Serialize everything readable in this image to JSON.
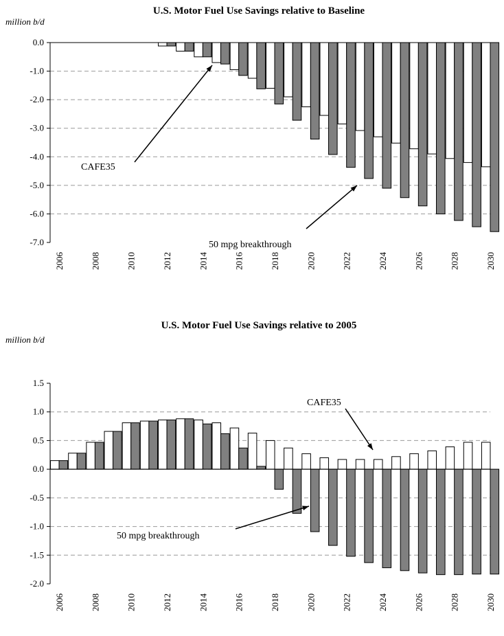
{
  "charts": [
    {
      "id": "baseline",
      "title": "U.S. Motor Fuel Use Savings relative to Baseline",
      "unit_label": "million b/d",
      "annotations": {
        "cafe": "CAFE35",
        "breakthrough": "50 mpg breakthrough"
      }
    },
    {
      "id": "y2005",
      "title": "U.S. Motor Fuel Use Savings relative to 2005",
      "unit_label": "million b/d",
      "annotations": {
        "cafe": "CAFE35",
        "breakthrough": "50 mpg breakthrough"
      }
    }
  ],
  "chart_data": [
    {
      "type": "bar",
      "title": "U.S. Motor Fuel Use Savings relative to Baseline",
      "ylabel": "million b/d",
      "ylim": [
        -7.0,
        0.0
      ],
      "yticks": [
        "0.0",
        "-1.0",
        "-2.0",
        "-3.0",
        "-4.0",
        "-5.0",
        "-6.0",
        "-7.0"
      ],
      "ytick_values": [
        0,
        -1,
        -2,
        -3,
        -4,
        -5,
        -6,
        -7
      ],
      "xtick_labels": [
        "2006",
        "2008",
        "2010",
        "2012",
        "2014",
        "2016",
        "2018",
        "2020",
        "2022",
        "2024",
        "2026",
        "2028",
        "2030"
      ],
      "categories": [
        2006,
        2007,
        2008,
        2009,
        2010,
        2011,
        2012,
        2013,
        2014,
        2015,
        2016,
        2017,
        2018,
        2019,
        2020,
        2021,
        2022,
        2023,
        2024,
        2025,
        2026,
        2027,
        2028,
        2029,
        2030
      ],
      "series": [
        {
          "name": "CAFE35",
          "color": "#ffffff",
          "values": [
            0,
            0,
            0,
            0,
            0,
            0,
            -0.12,
            -0.3,
            -0.5,
            -0.7,
            -0.95,
            -1.25,
            -1.6,
            -1.9,
            -2.25,
            -2.55,
            -2.85,
            -3.08,
            -3.3,
            -3.52,
            -3.72,
            -3.9,
            -4.06,
            -4.2,
            -4.35
          ]
        },
        {
          "name": "50 mpg breakthrough",
          "color": "#808080",
          "values": [
            0,
            0,
            0,
            0,
            0,
            0,
            -0.12,
            -0.3,
            -0.5,
            -0.75,
            -1.15,
            -1.62,
            -2.15,
            -2.72,
            -3.38,
            -3.92,
            -4.37,
            -4.76,
            -5.1,
            -5.43,
            -5.72,
            -6.0,
            -6.23,
            -6.45,
            -6.62
          ]
        }
      ],
      "grid": true
    },
    {
      "type": "bar",
      "title": "U.S. Motor Fuel Use Savings relative to 2005",
      "ylabel": "million b/d",
      "ylim": [
        -2.0,
        1.5
      ],
      "yticks": [
        "1.5",
        "1.0",
        "0.5",
        "0.0",
        "-0.5",
        "-1.0",
        "-1.5",
        "-2.0"
      ],
      "ytick_values": [
        1.5,
        1.0,
        0.5,
        0,
        -0.5,
        -1.0,
        -1.5,
        -2.0
      ],
      "xtick_labels": [
        "2006",
        "2008",
        "2010",
        "2012",
        "2014",
        "2016",
        "2018",
        "2020",
        "2022",
        "2024",
        "2026",
        "2028",
        "2030"
      ],
      "categories": [
        2006,
        2007,
        2008,
        2009,
        2010,
        2011,
        2012,
        2013,
        2014,
        2015,
        2016,
        2017,
        2018,
        2019,
        2020,
        2021,
        2022,
        2023,
        2024,
        2025,
        2026,
        2027,
        2028,
        2029,
        2030
      ],
      "series": [
        {
          "name": "CAFE35",
          "color": "#ffffff",
          "values": [
            0.15,
            0.28,
            0.47,
            0.66,
            0.81,
            0.84,
            0.86,
            0.88,
            0.86,
            0.81,
            0.72,
            0.63,
            0.5,
            0.37,
            0.27,
            0.2,
            0.17,
            0.17,
            0.17,
            0.22,
            0.27,
            0.32,
            0.39,
            0.47,
            0.47
          ]
        },
        {
          "name": "50 mpg breakthrough",
          "color": "#808080",
          "values": [
            0.15,
            0.28,
            0.47,
            0.66,
            0.81,
            0.84,
            0.86,
            0.88,
            0.79,
            0.62,
            0.37,
            0.05,
            -0.35,
            -0.77,
            -1.09,
            -1.33,
            -1.52,
            -1.63,
            -1.72,
            -1.77,
            -1.81,
            -1.84,
            -1.84,
            -1.83,
            -1.83
          ]
        }
      ],
      "grid": true
    }
  ]
}
